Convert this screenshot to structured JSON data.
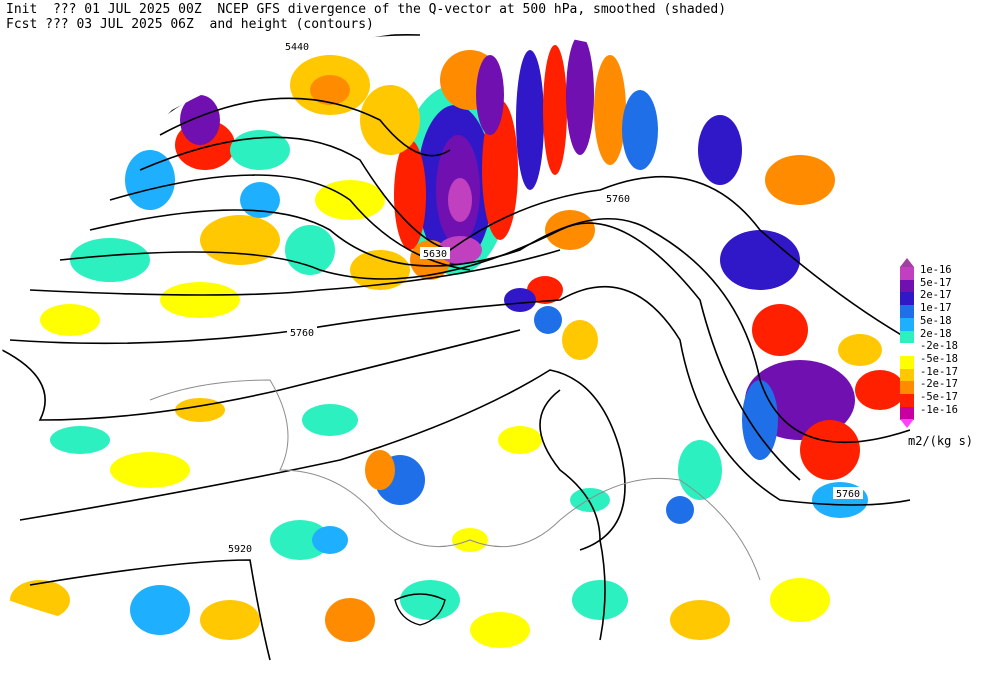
{
  "header": {
    "line1": "Init  ??? 01 JUL 2025 00Z  NCEP GFS divergence of the Q-vector at 500 hPa, smoothed (shaded)",
    "line2": "Fcst ??? 03 JUL 2025 06Z  and height (contours)"
  },
  "contour_labels": [
    "5440",
    "5630",
    "5760",
    "5760",
    "5760",
    "5920"
  ],
  "legend": {
    "units": "m2/(kg s)",
    "entries": [
      {
        "label": "1e-16",
        "color": "#c040c0"
      },
      {
        "label": "5e-17",
        "color": "#7010b0"
      },
      {
        "label": "2e-17",
        "color": "#3018c8"
      },
      {
        "label": "1e-17",
        "color": "#1f6fe8"
      },
      {
        "label": "5e-18",
        "color": "#1eb0ff"
      },
      {
        "label": "2e-18",
        "color": "#2cf0c0"
      },
      {
        "label": "-2e-18",
        "color": "#ffffff"
      },
      {
        "label": "-5e-18",
        "color": "#ffff00"
      },
      {
        "label": "-1e-17",
        "color": "#ffc800"
      },
      {
        "label": "-2e-17",
        "color": "#ff8c00"
      },
      {
        "label": "-5e-17",
        "color": "#ff2000"
      },
      {
        "label": "-1e-16",
        "color": "#c800a0"
      }
    ],
    "top_arrow_color": "#a040a0",
    "bottom_arrow_color": "#ff40ff"
  }
}
